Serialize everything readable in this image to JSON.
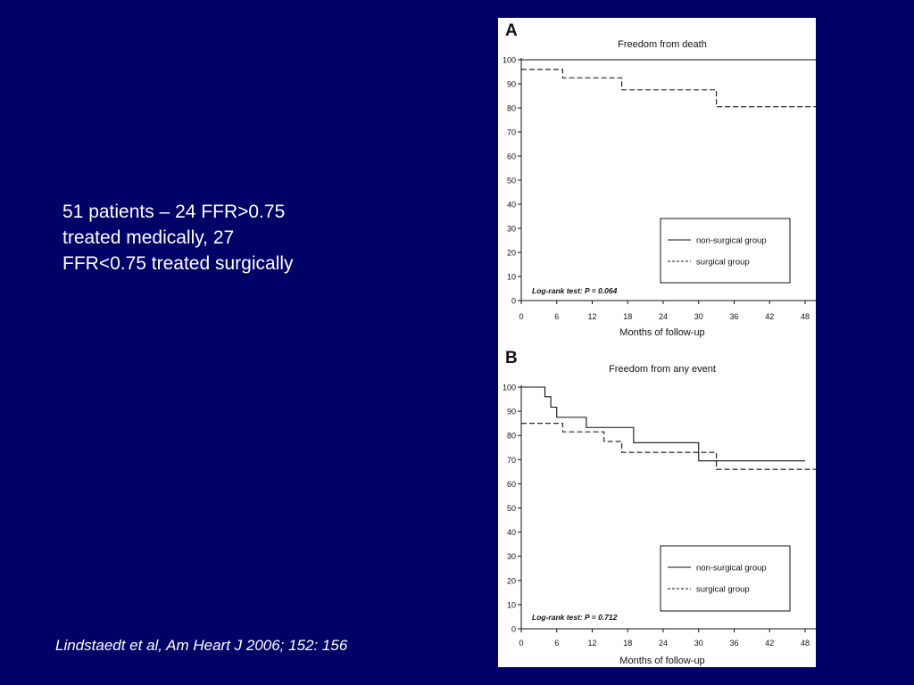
{
  "slide": {
    "text_lines": [
      "51 patients – 24 FFR>0.75",
      "treated medically, 27",
      "FFR<0.75 treated surgically"
    ],
    "citation": "Lindstaedt et al, Am Heart J 2006; 152: 156"
  },
  "colors": {
    "background": "#010066",
    "text": "#ffffff",
    "figure_background": "#ffffff",
    "series_line": "#111111"
  },
  "chart_data": [
    {
      "type": "line",
      "panel_letter": "A",
      "title": "Freedom from death",
      "xlabel": "Months of follow-up",
      "ylabel": "",
      "xlim": [
        0,
        48
      ],
      "ylim": [
        0,
        100
      ],
      "x_ticks": [
        0,
        6,
        12,
        18,
        24,
        30,
        36,
        42,
        48
      ],
      "y_ticks": [
        0,
        10,
        20,
        30,
        40,
        50,
        60,
        70,
        80,
        90,
        100
      ],
      "grid": false,
      "legend_position": "lower-right",
      "annotation": "Log-rank test: P = 0.064",
      "series": [
        {
          "name": "non-surgical group",
          "style": "solid",
          "step_x": [
            0,
            50
          ],
          "step_y": [
            100,
            100
          ]
        },
        {
          "name": "surgical group",
          "style": "dashed",
          "step_x": [
            0,
            7,
            17,
            33,
            50
          ],
          "step_y": [
            96,
            92.5,
            87.5,
            80.5,
            80.5
          ]
        }
      ]
    },
    {
      "type": "line",
      "panel_letter": "B",
      "title": "Freedom from any event",
      "xlabel": "Months of follow-up",
      "ylabel": "",
      "xlim": [
        0,
        48
      ],
      "ylim": [
        0,
        100
      ],
      "x_ticks": [
        0,
        6,
        12,
        18,
        24,
        30,
        36,
        42,
        48
      ],
      "y_ticks": [
        0,
        10,
        20,
        30,
        40,
        50,
        60,
        70,
        80,
        90,
        100
      ],
      "grid": false,
      "legend_position": "lower-right",
      "annotation": "Log-rank test: P = 0.712",
      "series": [
        {
          "name": "non-surgical group",
          "style": "solid",
          "step_x": [
            0,
            4,
            5,
            6,
            11,
            19,
            30,
            48
          ],
          "step_y": [
            100,
            96,
            91.7,
            87.5,
            83.3,
            77,
            69.5,
            69.5
          ]
        },
        {
          "name": "surgical group",
          "style": "dashed",
          "step_x": [
            0,
            7,
            14,
            17,
            33,
            50
          ],
          "step_y": [
            85,
            81.5,
            77.5,
            73,
            66,
            66
          ]
        }
      ]
    }
  ]
}
